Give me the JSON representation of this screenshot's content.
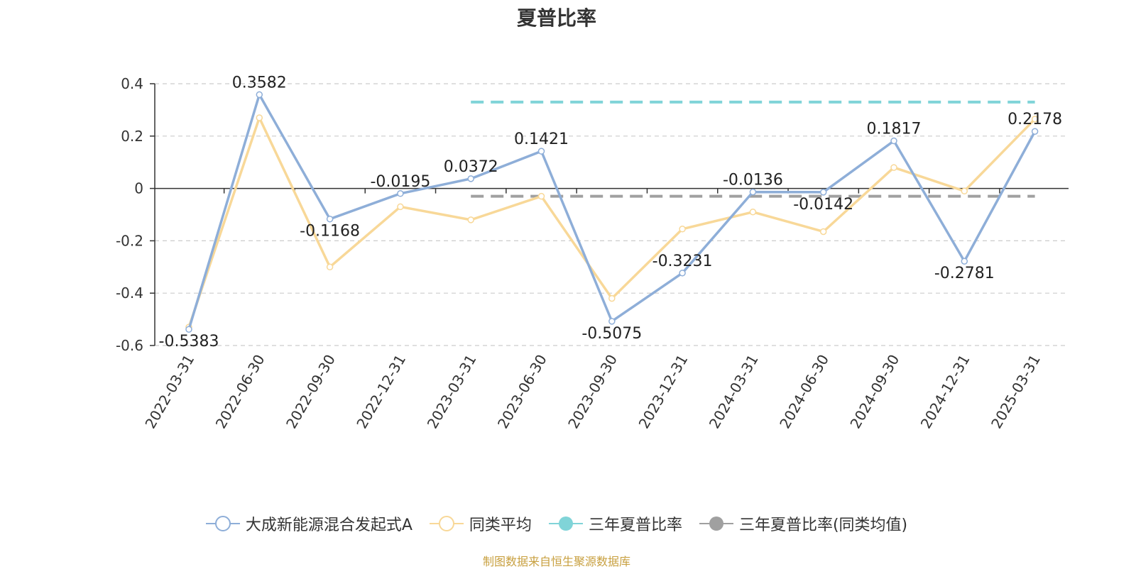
{
  "chart_data": {
    "type": "line",
    "title": "夏普比率",
    "categories": [
      "2022-03-31",
      "2022-06-30",
      "2022-09-30",
      "2022-12-31",
      "2023-03-31",
      "2023-06-30",
      "2023-09-30",
      "2023-12-31",
      "2024-03-31",
      "2024-06-30",
      "2024-09-30",
      "2024-12-31",
      "2025-03-31"
    ],
    "series": [
      {
        "name": "大成新能源混合发起式A",
        "color": "#8eaed8",
        "values": [
          -0.5383,
          0.3582,
          -0.1168,
          -0.0195,
          0.0372,
          0.1421,
          -0.5075,
          -0.3231,
          -0.0136,
          -0.0142,
          0.1817,
          -0.2781,
          0.2178
        ],
        "labels": [
          "-0.5383",
          "0.3582",
          "-0.1168",
          "-0.0195",
          "0.0372",
          "0.1421",
          "-0.5075",
          "-0.3231",
          "-0.0136",
          "-0.0142",
          "0.1817",
          "-0.2781",
          "0.2178"
        ]
      },
      {
        "name": "同类平均",
        "color": "#f8d898",
        "values": [
          -0.53,
          0.27,
          -0.3,
          -0.07,
          -0.12,
          -0.03,
          -0.42,
          -0.155,
          -0.09,
          -0.165,
          0.08,
          -0.01,
          0.265
        ]
      },
      {
        "name": "三年夏普比率",
        "color": "#80d4d8",
        "dashed": true,
        "value": 0.33,
        "from": "2023-03-31",
        "to": "2025-03-31"
      },
      {
        "name": "三年夏普比率(同类均值)",
        "color": "#a0a0a0",
        "dashed": true,
        "value": -0.03,
        "from": "2023-03-31",
        "to": "2025-03-31"
      }
    ],
    "ylim": [
      -0.6,
      0.4
    ],
    "yticks": [
      0.4,
      0.2,
      0,
      -0.2,
      -0.4,
      -0.6
    ],
    "ytick_labels": [
      "0.4",
      "0.2",
      "0",
      "-0.2",
      "-0.4",
      "-0.6"
    ],
    "grid": true,
    "legend_position": "bottom"
  },
  "source_note": "制图数据来自恒生聚源数据库"
}
